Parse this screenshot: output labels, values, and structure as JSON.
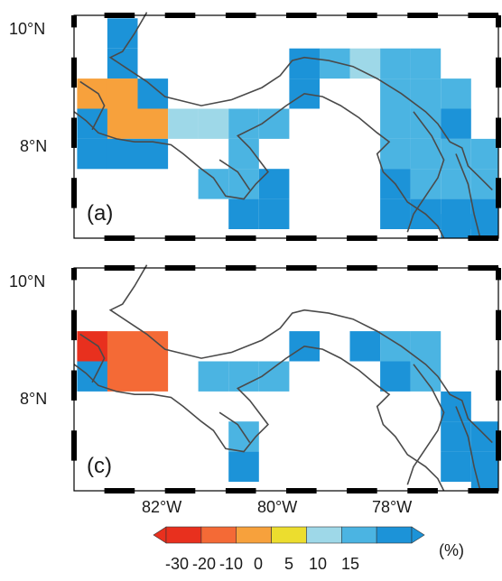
{
  "lat_labels": [
    "10°N",
    "8°N"
  ],
  "lon_labels": [
    "82°W",
    "80°W",
    "78°W"
  ],
  "panels": [
    {
      "label": "(a)"
    },
    {
      "label": "(c)"
    }
  ],
  "colorbar": {
    "unit": "(%)",
    "ticks": [
      "-30",
      "-20",
      "-10",
      "0",
      "5",
      "10",
      "15"
    ],
    "colors": [
      "#e8301e",
      "#f46a36",
      "#f7a13c",
      "#ecdd2e",
      "#9ed8e8",
      "#4bb4e2",
      "#1c93d8"
    ]
  },
  "colors": {
    "coast": "#4a4a4a",
    "frame": "#000000"
  },
  "chart_data": [
    {
      "type": "heatmap",
      "panel": "(a)",
      "x_range": [
        -83.3,
        -76.3
      ],
      "y_range": [
        6.6,
        10.3
      ],
      "cell_degrees": 0.5,
      "units": "%",
      "cells": [
        {
          "lon": -82.5,
          "lat": 10.0,
          "value": 12
        },
        {
          "lon": -82.5,
          "lat": 9.5,
          "value": 12
        },
        {
          "lon": -83.0,
          "lat": 9.0,
          "value": -3
        },
        {
          "lon": -82.5,
          "lat": 9.0,
          "value": -3
        },
        {
          "lon": -82.0,
          "lat": 9.0,
          "value": 12
        },
        {
          "lon": -83.0,
          "lat": 8.5,
          "value": 12
        },
        {
          "lon": -82.5,
          "lat": 8.5,
          "value": -3
        },
        {
          "lon": -82.0,
          "lat": 8.5,
          "value": -3
        },
        {
          "lon": -81.5,
          "lat": 8.5,
          "value": 3
        },
        {
          "lon": -81.0,
          "lat": 8.5,
          "value": 3
        },
        {
          "lon": -80.5,
          "lat": 8.5,
          "value": 7
        },
        {
          "lon": -80.0,
          "lat": 8.5,
          "value": 7
        },
        {
          "lon": -83.0,
          "lat": 8.0,
          "value": 12
        },
        {
          "lon": -82.5,
          "lat": 8.0,
          "value": 12
        },
        {
          "lon": -82.0,
          "lat": 8.0,
          "value": 12
        },
        {
          "lon": -80.5,
          "lat": 8.0,
          "value": 7
        },
        {
          "lon": -81.0,
          "lat": 7.5,
          "value": 7
        },
        {
          "lon": -80.5,
          "lat": 7.5,
          "value": 7
        },
        {
          "lon": -80.0,
          "lat": 7.5,
          "value": 12
        },
        {
          "lon": -80.5,
          "lat": 7.0,
          "value": 12
        },
        {
          "lon": -80.0,
          "lat": 7.0,
          "value": 12
        },
        {
          "lon": -79.5,
          "lat": 9.5,
          "value": 12
        },
        {
          "lon": -79.0,
          "lat": 9.5,
          "value": 7
        },
        {
          "lon": -78.5,
          "lat": 9.5,
          "value": 3
        },
        {
          "lon": -78.0,
          "lat": 9.5,
          "value": 7
        },
        {
          "lon": -77.5,
          "lat": 9.5,
          "value": 7
        },
        {
          "lon": -79.5,
          "lat": 9.0,
          "value": 12
        },
        {
          "lon": -78.0,
          "lat": 9.0,
          "value": 7
        },
        {
          "lon": -77.5,
          "lat": 9.0,
          "value": 7
        },
        {
          "lon": -77.0,
          "lat": 9.0,
          "value": 7
        },
        {
          "lon": -78.0,
          "lat": 8.5,
          "value": 7
        },
        {
          "lon": -77.5,
          "lat": 8.5,
          "value": 7
        },
        {
          "lon": -77.0,
          "lat": 8.5,
          "value": 12
        },
        {
          "lon": -78.0,
          "lat": 8.0,
          "value": 7
        },
        {
          "lon": -77.5,
          "lat": 8.0,
          "value": 7
        },
        {
          "lon": -77.0,
          "lat": 8.0,
          "value": 7
        },
        {
          "lon": -76.5,
          "lat": 8.0,
          "value": 7
        },
        {
          "lon": -78.0,
          "lat": 7.5,
          "value": 12
        },
        {
          "lon": -77.5,
          "lat": 7.5,
          "value": 7
        },
        {
          "lon": -77.0,
          "lat": 7.5,
          "value": 7
        },
        {
          "lon": -76.5,
          "lat": 7.5,
          "value": 7
        },
        {
          "lon": -78.0,
          "lat": 7.0,
          "value": 12
        },
        {
          "lon": -77.5,
          "lat": 7.0,
          "value": 12
        },
        {
          "lon": -77.0,
          "lat": 7.0,
          "value": 12
        },
        {
          "lon": -76.5,
          "lat": 7.0,
          "value": 12
        },
        {
          "lon": -77.0,
          "lat": 6.75,
          "value": 12
        },
        {
          "lon": -76.5,
          "lat": 6.75,
          "value": 12
        }
      ]
    },
    {
      "type": "heatmap",
      "panel": "(c)",
      "x_range": [
        -83.3,
        -76.3
      ],
      "y_range": [
        6.6,
        10.3
      ],
      "cell_degrees": 0.5,
      "units": "%",
      "cells": [
        {
          "lon": -83.0,
          "lat": 9.0,
          "value": -25
        },
        {
          "lon": -82.5,
          "lat": 9.0,
          "value": -15
        },
        {
          "lon": -82.0,
          "lat": 9.0,
          "value": -15
        },
        {
          "lon": -83.0,
          "lat": 8.5,
          "value": 12
        },
        {
          "lon": -82.5,
          "lat": 8.5,
          "value": -15
        },
        {
          "lon": -82.0,
          "lat": 8.5,
          "value": -15
        },
        {
          "lon": -81.0,
          "lat": 8.5,
          "value": 7
        },
        {
          "lon": -80.5,
          "lat": 8.5,
          "value": 7
        },
        {
          "lon": -80.0,
          "lat": 8.5,
          "value": 7
        },
        {
          "lon": -79.5,
          "lat": 9.0,
          "value": 12
        },
        {
          "lon": -80.5,
          "lat": 7.5,
          "value": 7
        },
        {
          "lon": -80.5,
          "lat": 7.0,
          "value": 12
        },
        {
          "lon": -78.5,
          "lat": 9.0,
          "value": 12
        },
        {
          "lon": -78.0,
          "lat": 9.0,
          "value": 7
        },
        {
          "lon": -77.5,
          "lat": 9.0,
          "value": 7
        },
        {
          "lon": -78.0,
          "lat": 8.5,
          "value": 12
        },
        {
          "lon": -77.5,
          "lat": 8.5,
          "value": 7
        },
        {
          "lon": -77.0,
          "lat": 8.0,
          "value": 12
        },
        {
          "lon": -77.0,
          "lat": 7.5,
          "value": 12
        },
        {
          "lon": -76.5,
          "lat": 7.5,
          "value": 12
        },
        {
          "lon": -77.0,
          "lat": 7.0,
          "value": 12
        },
        {
          "lon": -76.5,
          "lat": 7.0,
          "value": 12
        },
        {
          "lon": -76.5,
          "lat": 6.75,
          "value": 12
        }
      ]
    }
  ]
}
